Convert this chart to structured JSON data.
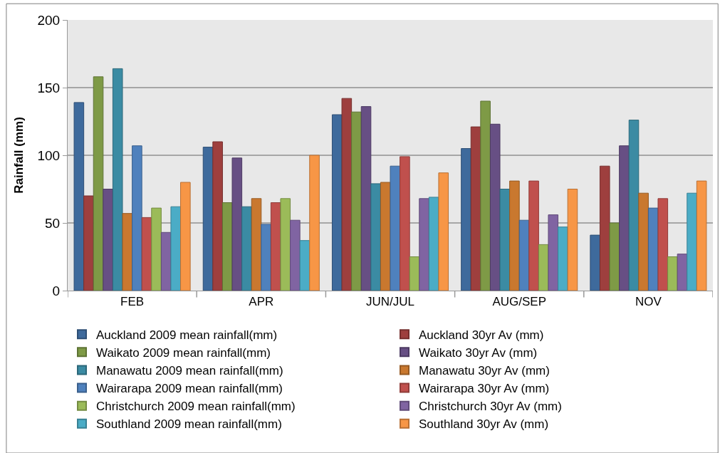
{
  "chart_data": {
    "type": "bar",
    "ylabel": "Rainfall (mm)",
    "categories": [
      "FEB",
      "APR",
      "JUN/JUL",
      "AUG/SEP",
      "NOV"
    ],
    "ylim": [
      0,
      200
    ],
    "yticks": [
      0,
      50,
      100,
      150,
      200
    ],
    "grid": "y",
    "legend": "bottom",
    "series": [
      {
        "name": "Auckland 2009 mean rainfall(mm)",
        "color": "#3e6a9c",
        "values": [
          139,
          106,
          130,
          105,
          41
        ]
      },
      {
        "name": "Auckland 30yr Av (mm)",
        "color": "#9e3f3e",
        "values": [
          70,
          110,
          142,
          121,
          92
        ]
      },
      {
        "name": "Waikato 2009 mean rainfall(mm)",
        "color": "#7e9a46",
        "values": [
          158,
          65,
          132,
          140,
          50
        ]
      },
      {
        "name": "Waikato 30yr Av (mm)",
        "color": "#674f84",
        "values": [
          75,
          98,
          136,
          123,
          107
        ]
      },
      {
        "name": "Manawatu 2009 mean rainfall(mm)",
        "color": "#3b8ba3",
        "values": [
          164,
          62,
          79,
          75,
          126
        ]
      },
      {
        "name": "Manawatu 30yr Av (mm)",
        "color": "#c9782f",
        "values": [
          57,
          68,
          80,
          81,
          72
        ]
      },
      {
        "name": "Wairarapa 2009 mean rainfall(mm)",
        "color": "#4f81bd",
        "values": [
          107,
          49,
          92,
          52,
          61
        ]
      },
      {
        "name": "Wairarapa 30yr Av (mm)",
        "color": "#c0504d",
        "values": [
          54,
          65,
          99,
          81,
          68
        ]
      },
      {
        "name": "Christchurch 2009 mean rainfall(mm)",
        "color": "#9bbb59",
        "values": [
          61,
          68,
          25,
          34,
          25
        ]
      },
      {
        "name": "Christchurch 30yr Av (mm)",
        "color": "#8064a2",
        "values": [
          43,
          52,
          68,
          56,
          27
        ]
      },
      {
        "name": "Southland 2009 mean rainfall(mm)",
        "color": "#4bacc6",
        "values": [
          62,
          37,
          69,
          47,
          72
        ]
      },
      {
        "name": "Southland 30yr Av (mm)",
        "color": "#f79646",
        "values": [
          80,
          100,
          87,
          75,
          81
        ]
      }
    ]
  }
}
